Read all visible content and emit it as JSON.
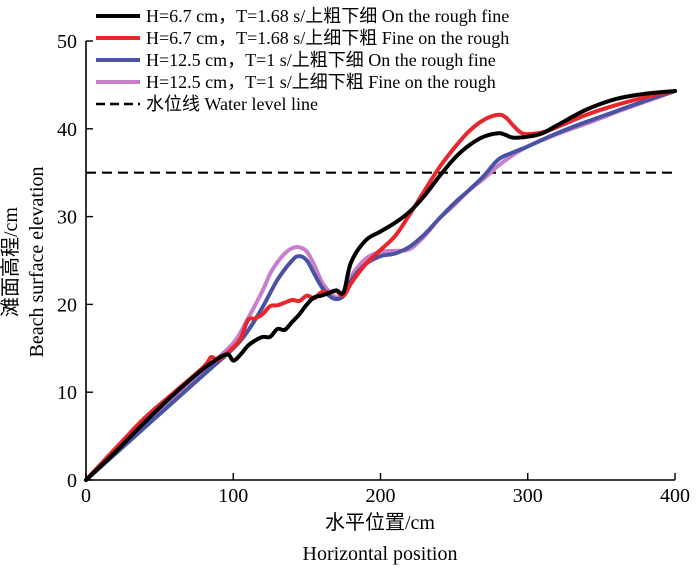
{
  "chart_data": {
    "type": "line",
    "xlabel_cn": "水平位置/cm",
    "xlabel_en": "Horizontal position",
    "ylabel_cn": "滩面高程/cm",
    "ylabel_en": "Beach surface elevation",
    "xlim": [
      0,
      400
    ],
    "ylim": [
      0,
      50
    ],
    "xticks": [
      0,
      100,
      200,
      300,
      400
    ],
    "yticks": [
      0,
      10,
      20,
      30,
      40,
      50
    ],
    "legend_position": "top-left",
    "series": [
      {
        "name": "H=6.7 cm，T=1.68 s/上粗下细 On the rough fine",
        "color": "#000000",
        "x": [
          0,
          20,
          40,
          60,
          80,
          95,
          100,
          105,
          110,
          115,
          120,
          125,
          130,
          135,
          140,
          145,
          150,
          155,
          160,
          165,
          170,
          175,
          180,
          190,
          200,
          210,
          220,
          230,
          240,
          250,
          260,
          270,
          280,
          285,
          290,
          300,
          310,
          320,
          340,
          360,
          380,
          400
        ],
        "y": [
          0,
          3.2,
          6.6,
          9.8,
          12.7,
          14.3,
          13.6,
          14.3,
          15.3,
          15.9,
          16.3,
          16.3,
          17.2,
          17.1,
          18.0,
          18.9,
          20.0,
          20.8,
          21.0,
          21.3,
          21.6,
          21.4,
          24.8,
          27.3,
          28.3,
          29.3,
          30.6,
          32.4,
          34.6,
          36.6,
          38.1,
          39.1,
          39.5,
          39.3,
          39.0,
          39.1,
          39.5,
          40.4,
          42.2,
          43.4,
          44.0,
          44.3
        ]
      },
      {
        "name": "H=6.7 cm，T=1.68 s/上细下粗 Fine on the rough",
        "color": "#e8262b",
        "x": [
          0,
          20,
          40,
          60,
          80,
          85,
          90,
          100,
          105,
          110,
          115,
          120,
          125,
          130,
          135,
          140,
          145,
          150,
          155,
          160,
          165,
          170,
          175,
          180,
          190,
          200,
          210,
          220,
          230,
          240,
          250,
          260,
          270,
          280,
          285,
          290,
          295,
          300,
          310,
          320,
          340,
          360,
          380,
          400
        ],
        "y": [
          0,
          3.6,
          7.1,
          10.0,
          12.9,
          14.0,
          13.7,
          15.1,
          16.1,
          18.2,
          18.4,
          18.9,
          19.8,
          19.9,
          20.2,
          20.5,
          20.4,
          21.0,
          20.7,
          21.4,
          21.4,
          21.5,
          21.0,
          22.4,
          24.6,
          26.2,
          27.8,
          30.3,
          33.0,
          35.6,
          37.8,
          39.7,
          41.0,
          41.6,
          41.3,
          40.4,
          39.6,
          39.4,
          39.6,
          40.2,
          41.6,
          42.7,
          43.6,
          44.3
        ]
      },
      {
        "name": "H=12.5 cm，T=1 s/上粗下细 On the rough fine",
        "color": "#4a52a3",
        "x": [
          0,
          20,
          40,
          60,
          80,
          100,
          110,
          120,
          130,
          140,
          145,
          150,
          155,
          160,
          165,
          170,
          175,
          180,
          190,
          200,
          210,
          220,
          230,
          240,
          250,
          260,
          270,
          280,
          290,
          300,
          320,
          340,
          360,
          380,
          400
        ],
        "y": [
          0,
          3.0,
          6.0,
          9.0,
          12.0,
          15.0,
          17.0,
          19.7,
          22.8,
          25.0,
          25.5,
          25.0,
          23.5,
          22.0,
          21.0,
          20.6,
          21.0,
          22.7,
          24.6,
          25.5,
          25.8,
          26.6,
          28.0,
          29.8,
          31.5,
          33.0,
          34.6,
          36.5,
          37.3,
          38.0,
          39.5,
          40.8,
          42.0,
          43.2,
          44.3
        ]
      },
      {
        "name": "H=12.5 cm，T=1 s/上细下粗 Fine on the rough",
        "color": "#c87ec8",
        "x": [
          0,
          20,
          40,
          60,
          80,
          100,
          110,
          120,
          125,
          130,
          135,
          140,
          145,
          150,
          155,
          160,
          165,
          170,
          175,
          180,
          190,
          200,
          210,
          220,
          230,
          240,
          250,
          260,
          270,
          280,
          290,
          300,
          320,
          340,
          360,
          380,
          400
        ],
        "y": [
          0,
          3.2,
          6.4,
          9.5,
          12.5,
          15.6,
          18.4,
          21.6,
          23.5,
          24.8,
          25.8,
          26.4,
          26.5,
          26.0,
          24.5,
          22.6,
          21.5,
          20.8,
          21.4,
          23.2,
          25.2,
          26.0,
          26.1,
          26.3,
          27.8,
          29.8,
          31.3,
          33.0,
          34.3,
          35.8,
          37.0,
          38.0,
          39.4,
          40.6,
          41.9,
          43.1,
          44.3
        ]
      }
    ],
    "reference_lines": [
      {
        "name": "水位线 Water  level  line",
        "y": 35,
        "style": "dashed",
        "color": "#000000"
      }
    ]
  }
}
